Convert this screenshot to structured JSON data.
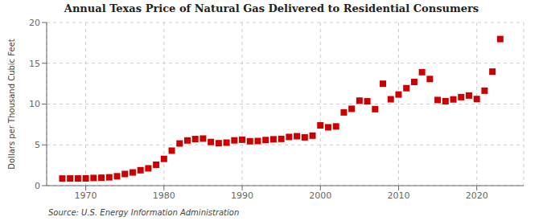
{
  "chart_data": {
    "type": "scatter",
    "title": "Annual Texas Price of Natural Gas Delivered to Residential Consumers",
    "ylabel": "Dollars per Thousand Cubic Feet",
    "annotations": [
      "Source: U.S. Energy Information Administration"
    ],
    "x": [
      1967,
      1968,
      1969,
      1970,
      1971,
      1972,
      1973,
      1974,
      1975,
      1976,
      1977,
      1978,
      1979,
      1980,
      1981,
      1982,
      1983,
      1984,
      1985,
      1986,
      1987,
      1988,
      1989,
      1990,
      1991,
      1992,
      1993,
      1994,
      1995,
      1996,
      1997,
      1998,
      1999,
      2000,
      2001,
      2002,
      2003,
      2004,
      2005,
      2006,
      2007,
      2008,
      2009,
      2010,
      2011,
      2012,
      2013,
      2014,
      2015,
      2016,
      2017,
      2018,
      2019,
      2020,
      2021,
      2022,
      2023
    ],
    "values": [
      0.87,
      0.88,
      0.88,
      0.89,
      0.94,
      0.97,
      1.02,
      1.15,
      1.43,
      1.62,
      1.89,
      2.12,
      2.56,
      3.28,
      4.29,
      5.17,
      5.54,
      5.71,
      5.77,
      5.35,
      5.2,
      5.27,
      5.55,
      5.63,
      5.44,
      5.47,
      5.59,
      5.68,
      5.73,
      5.97,
      6.06,
      5.92,
      6.13,
      7.39,
      7.15,
      7.26,
      8.98,
      9.42,
      10.42,
      10.34,
      9.38,
      12.49,
      10.59,
      11.17,
      11.95,
      12.71,
      13.91,
      13.07,
      10.5,
      10.35,
      10.57,
      10.85,
      11.05,
      10.62,
      11.64,
      13.98,
      17.97
    ],
    "color": "#cc0000",
    "marker": "square",
    "grid": true,
    "xlim": [
      1965,
      2026
    ],
    "ylim": [
      0,
      20
    ],
    "xticks": [
      1970,
      1980,
      1990,
      2000,
      2010,
      2020
    ],
    "yticks": [
      0,
      5,
      10,
      15,
      20
    ]
  }
}
